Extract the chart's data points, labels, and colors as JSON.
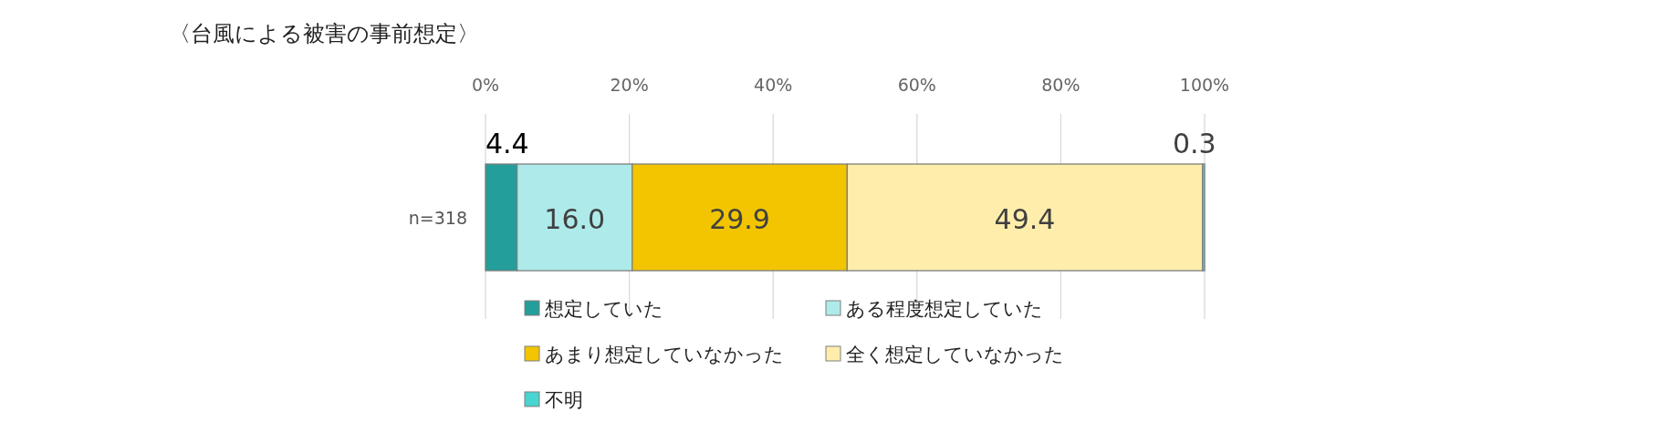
{
  "chart_data": {
    "type": "bar",
    "orientation": "horizontal",
    "stacked": true,
    "title": "〈台風による被害の事前想定〉",
    "categories": [
      "n=318"
    ],
    "series": [
      {
        "name": "想定していた",
        "color": "#239e9a",
        "values": [
          4.4
        ],
        "value_labels": [
          "4.4"
        ]
      },
      {
        "name": "ある程度想定していた",
        "color": "#aeeaea",
        "values": [
          16.0
        ],
        "value_labels": [
          "16.0"
        ]
      },
      {
        "name": "あまり想定していなかった",
        "color": "#f2c500",
        "values": [
          29.9
        ],
        "value_labels": [
          "29.9"
        ]
      },
      {
        "name": "全く想定していなかった",
        "color": "#ffeeab",
        "values": [
          49.4
        ],
        "value_labels": [
          "49.4"
        ]
      },
      {
        "name": "不明",
        "color": "#48d4d0",
        "values": [
          0.3
        ],
        "value_labels": [
          "0.3"
        ]
      }
    ],
    "xlim": [
      0,
      100
    ],
    "xticks": [
      {
        "value": 0,
        "label": "0%"
      },
      {
        "value": 20,
        "label": "20%"
      },
      {
        "value": 40,
        "label": "40%"
      },
      {
        "value": 60,
        "label": "60%"
      },
      {
        "value": 80,
        "label": "80%"
      },
      {
        "value": 100,
        "label": "100%"
      }
    ],
    "grid": "x",
    "legend": "bottom"
  }
}
